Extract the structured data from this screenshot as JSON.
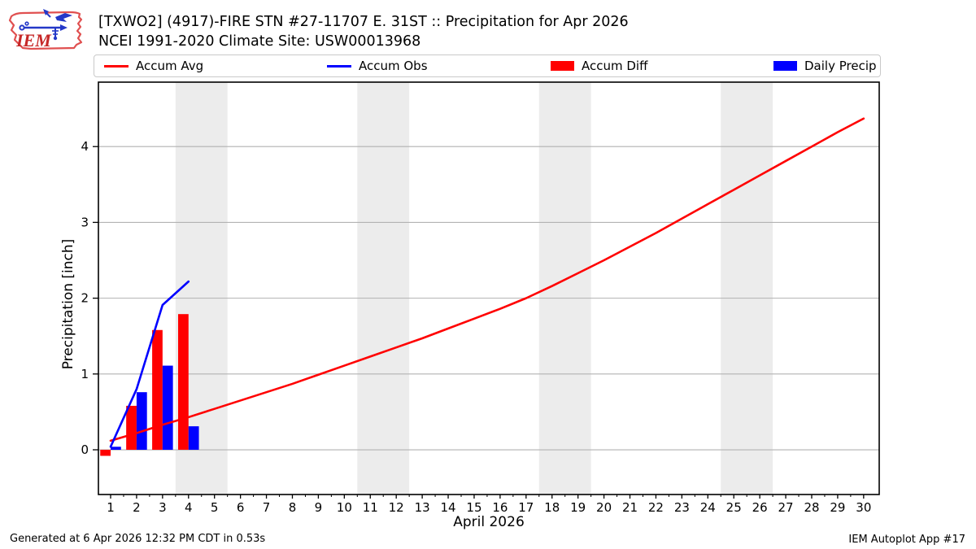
{
  "header": {
    "title_line1": "[TXWO2] (4917)-FIRE STN #27-11707 E. 31ST :: Precipitation for Apr 2026",
    "title_line2": "NCEI 1991-2020 Climate Site: USW00013968",
    "logo_text": "IEM"
  },
  "legend": [
    {
      "label": "Accum Avg",
      "type": "line",
      "color": "#ff0000"
    },
    {
      "label": "Accum Obs",
      "type": "line",
      "color": "#0000ff"
    },
    {
      "label": "Accum Diff",
      "type": "patch",
      "color": "#ff0000"
    },
    {
      "label": "Daily Precip",
      "type": "patch",
      "color": "#0000ff"
    }
  ],
  "footer": {
    "generated": "Generated at 6 Apr 2026 12:32 PM CDT in 0.53s",
    "app": "IEM Autoplot App #17"
  },
  "chart_data": {
    "type": "bar",
    "title": "[TXWO2] (4917)-FIRE STN #27-11707 E. 31ST :: Precipitation for Apr 2026 — NCEI 1991-2020 Climate Site: USW00013968",
    "xlabel": "April 2026",
    "ylabel": "Precipitation [inch]",
    "xlim": [
      0.53,
      30.6
    ],
    "ylim": [
      -0.59,
      4.85
    ],
    "xticks": [
      1,
      2,
      3,
      4,
      5,
      6,
      7,
      8,
      9,
      10,
      11,
      12,
      13,
      14,
      15,
      16,
      17,
      18,
      19,
      20,
      21,
      22,
      23,
      24,
      25,
      26,
      27,
      28,
      29,
      30
    ],
    "yticks": [
      0,
      1,
      2,
      3,
      4
    ],
    "grid": "horizontal-only",
    "legend_position": "top",
    "band_color": "#ececec",
    "grid_color": "#b2b2b2",
    "weekend_bands": [
      [
        3.5,
        5.5
      ],
      [
        10.5,
        12.5
      ],
      [
        17.5,
        19.5
      ],
      [
        24.5,
        26.5
      ]
    ],
    "series": [
      {
        "name": "Accum Avg",
        "type": "line",
        "color": "#ff0000",
        "days": [
          1,
          2,
          3,
          4,
          5,
          6,
          7,
          8,
          9,
          10,
          11,
          12,
          13,
          14,
          15,
          16,
          17,
          18,
          19,
          20,
          21,
          22,
          23,
          24,
          25,
          26,
          27,
          28,
          29,
          30
        ],
        "values": [
          0.12,
          0.22,
          0.33,
          0.43,
          0.54,
          0.65,
          0.76,
          0.87,
          0.99,
          1.11,
          1.23,
          1.35,
          1.47,
          1.6,
          1.73,
          1.86,
          2.0,
          2.16,
          2.33,
          2.5,
          2.68,
          2.86,
          3.05,
          3.24,
          3.43,
          3.62,
          3.81,
          4.0,
          4.19,
          4.37
        ]
      },
      {
        "name": "Accum Obs",
        "type": "line",
        "color": "#0000ff",
        "days": [
          1,
          2,
          3,
          4
        ],
        "values": [
          0.04,
          0.8,
          1.91,
          2.22
        ]
      },
      {
        "name": "Accum Diff",
        "type": "bar",
        "color": "#ff0000",
        "bar_offset": [
          -0.4,
          0
        ],
        "days": [
          1,
          2,
          3,
          4
        ],
        "values": [
          -0.08,
          0.58,
          1.58,
          1.79
        ]
      },
      {
        "name": "Daily Precip",
        "type": "bar",
        "color": "#0000ff",
        "bar_offset": [
          0,
          0.4
        ],
        "days": [
          1,
          2,
          3,
          4
        ],
        "values": [
          0.04,
          0.76,
          1.11,
          0.31
        ]
      }
    ]
  }
}
